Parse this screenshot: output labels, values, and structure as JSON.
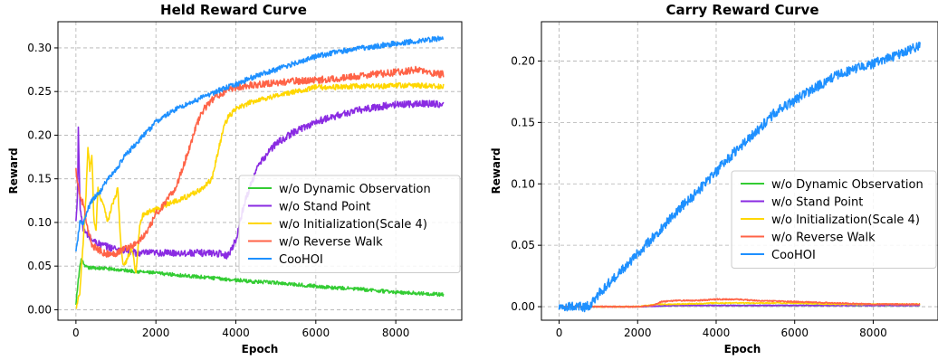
{
  "chart_data": [
    {
      "type": "line",
      "title": "Held Reward Curve",
      "xlabel": "Epoch",
      "ylabel": "Reward",
      "xlim": [
        -450,
        9650
      ],
      "ylim": [
        -0.012,
        0.33
      ],
      "xticks": [
        0,
        2000,
        4000,
        6000,
        8000
      ],
      "yticks": [
        0.0,
        0.05,
        0.1,
        0.15,
        0.2,
        0.25,
        0.3
      ],
      "ytick_labels": [
        "0.00",
        "0.05",
        "0.10",
        "0.15",
        "0.20",
        "0.25",
        "0.30"
      ],
      "grid": true,
      "legend": "center-right",
      "series": [
        {
          "name": "w/o Dynamic Observation",
          "color": "#33cc33",
          "x": [
            0,
            50,
            100,
            150,
            200,
            300,
            500,
            800,
            1000,
            1500,
            2000,
            2500,
            3000,
            3500,
            4000,
            4500,
            5000,
            5500,
            6000,
            6500,
            7000,
            7500,
            8000,
            8500,
            9000,
            9200
          ],
          "y": [
            0.005,
            0.03,
            0.05,
            0.06,
            0.05,
            0.048,
            0.048,
            0.047,
            0.046,
            0.044,
            0.042,
            0.04,
            0.038,
            0.036,
            0.034,
            0.032,
            0.031,
            0.029,
            0.027,
            0.025,
            0.024,
            0.022,
            0.02,
            0.019,
            0.018,
            0.017
          ],
          "noise": 0.002
        },
        {
          "name": "w/o Stand Point",
          "color": "#8a2be2",
          "x": [
            0,
            40,
            60,
            100,
            150,
            200,
            300,
            400,
            600,
            800,
            1000,
            1200,
            1500,
            2000,
            2500,
            3000,
            3500,
            3800,
            4000,
            4200,
            4500,
            4800,
            5000,
            5500,
            6000,
            6500,
            7000,
            7500,
            8000,
            8500,
            9000,
            9200
          ],
          "y": [
            0.1,
            0.13,
            0.21,
            0.12,
            0.1,
            0.09,
            0.085,
            0.08,
            0.075,
            0.072,
            0.07,
            0.068,
            0.065,
            0.065,
            0.065,
            0.065,
            0.065,
            0.062,
            0.08,
            0.12,
            0.16,
            0.18,
            0.19,
            0.205,
            0.215,
            0.222,
            0.228,
            0.232,
            0.235,
            0.236,
            0.236,
            0.235
          ],
          "noise": 0.004
        },
        {
          "name": "w/o Initialization(Scale 4)",
          "color": "#ffd700",
          "x": [
            0,
            100,
            200,
            250,
            300,
            350,
            400,
            450,
            500,
            550,
            600,
            700,
            800,
            900,
            1000,
            1050,
            1100,
            1150,
            1200,
            1300,
            1400,
            1500,
            1600,
            1700,
            2000,
            2500,
            2800,
            3000,
            3200,
            3400,
            3500,
            3600,
            3700,
            3800,
            4000,
            4500,
            5000,
            5500,
            6000,
            6500,
            7000,
            7500,
            8000,
            8500,
            9000,
            9200
          ],
          "y": [
            0.0,
            0.02,
            0.09,
            0.13,
            0.185,
            0.16,
            0.18,
            0.1,
            0.09,
            0.14,
            0.13,
            0.12,
            0.1,
            0.12,
            0.13,
            0.14,
            0.09,
            0.06,
            0.05,
            0.06,
            0.07,
            0.04,
            0.1,
            0.11,
            0.115,
            0.125,
            0.13,
            0.135,
            0.14,
            0.15,
            0.17,
            0.19,
            0.21,
            0.22,
            0.23,
            0.24,
            0.245,
            0.25,
            0.255,
            0.255,
            0.256,
            0.256,
            0.257,
            0.257,
            0.256,
            0.256
          ],
          "noise": 0.003
        },
        {
          "name": "w/o Reverse Walk",
          "color": "#ff6347",
          "x": [
            0,
            100,
            200,
            250,
            300,
            400,
            500,
            700,
            900,
            1000,
            1200,
            1500,
            1800,
            2000,
            2200,
            2500,
            2800,
            3000,
            3200,
            3500,
            4000,
            4500,
            5000,
            5500,
            6000,
            6500,
            7000,
            7500,
            8000,
            8500,
            9000,
            9200
          ],
          "y": [
            0.16,
            0.13,
            0.12,
            0.1,
            0.09,
            0.075,
            0.07,
            0.065,
            0.063,
            0.065,
            0.07,
            0.075,
            0.09,
            0.11,
            0.12,
            0.14,
            0.18,
            0.21,
            0.23,
            0.245,
            0.255,
            0.258,
            0.26,
            0.262,
            0.263,
            0.265,
            0.267,
            0.27,
            0.272,
            0.275,
            0.27,
            0.27
          ],
          "noise": 0.004
        },
        {
          "name": "CooHOI",
          "color": "#1e90ff",
          "x": [
            0,
            100,
            200,
            300,
            400,
            500,
            600,
            800,
            1000,
            1200,
            1500,
            1800,
            2000,
            2500,
            3000,
            3500,
            4000,
            4500,
            5000,
            5500,
            6000,
            6500,
            7000,
            7500,
            8000,
            8500,
            9000,
            9200
          ],
          "y": [
            0.065,
            0.1,
            0.1,
            0.115,
            0.125,
            0.13,
            0.135,
            0.15,
            0.16,
            0.175,
            0.19,
            0.205,
            0.215,
            0.23,
            0.24,
            0.25,
            0.258,
            0.268,
            0.275,
            0.283,
            0.29,
            0.295,
            0.299,
            0.302,
            0.305,
            0.308,
            0.31,
            0.312
          ],
          "noise": 0.003
        }
      ]
    },
    {
      "type": "line",
      "title": "Carry Reward Curve",
      "xlabel": "Epoch",
      "ylabel": "Reward",
      "xlim": [
        -450,
        9650
      ],
      "ylim": [
        -0.011,
        0.232
      ],
      "xticks": [
        0,
        2000,
        4000,
        6000,
        8000
      ],
      "yticks": [
        0.0,
        0.05,
        0.1,
        0.15,
        0.2
      ],
      "ytick_labels": [
        "0.00",
        "0.05",
        "0.10",
        "0.15",
        "0.20"
      ],
      "grid": true,
      "legend": "center-right",
      "series": [
        {
          "name": "w/o Dynamic Observation",
          "color": "#33cc33",
          "x": [
            0,
            800,
            2000,
            3000,
            4000,
            5000,
            6000,
            7000,
            8000,
            9000,
            9200
          ],
          "y": [
            0.0,
            0.0,
            0.0,
            0.001,
            0.001,
            0.001,
            0.001,
            0.001,
            0.001,
            0.001,
            0.001
          ],
          "noise": 0.0003
        },
        {
          "name": "w/o Stand Point",
          "color": "#8a2be2",
          "x": [
            0,
            800,
            2000,
            3000,
            4000,
            5000,
            6000,
            7000,
            8000,
            9000,
            9200
          ],
          "y": [
            0.0,
            0.0,
            0.0,
            0.001,
            0.001,
            0.001,
            0.001,
            0.001,
            0.001,
            0.001,
            0.001
          ],
          "noise": 0.0003
        },
        {
          "name": "w/o Initialization(Scale 4)",
          "color": "#ffd700",
          "x": [
            0,
            800,
            2000,
            2500,
            3000,
            4000,
            5000,
            6000,
            7000,
            8000,
            9000,
            9200
          ],
          "y": [
            0.0,
            0.0,
            0.0,
            0.002,
            0.002,
            0.003,
            0.003,
            0.003,
            0.002,
            0.002,
            0.002,
            0.002
          ],
          "noise": 0.0004
        },
        {
          "name": "w/o Reverse Walk",
          "color": "#ff6347",
          "x": [
            0,
            800,
            2000,
            2400,
            2600,
            3000,
            3500,
            4000,
            4500,
            5000,
            6000,
            7000,
            8000,
            9000,
            9200
          ],
          "y": [
            0.0,
            0.0,
            0.0,
            0.001,
            0.004,
            0.005,
            0.005,
            0.006,
            0.006,
            0.005,
            0.004,
            0.003,
            0.002,
            0.002,
            0.002
          ],
          "noise": 0.0005
        },
        {
          "name": "CooHOI",
          "color": "#1e90ff",
          "x": [
            0,
            500,
            700,
            800,
            900,
            1000,
            1200,
            1500,
            2000,
            2500,
            3000,
            3500,
            4000,
            4500,
            5000,
            5500,
            6000,
            6500,
            7000,
            7500,
            8000,
            8500,
            9000,
            9200
          ],
          "y": [
            0.0,
            0.0,
            0.0,
            0.002,
            0.006,
            0.01,
            0.017,
            0.027,
            0.043,
            0.06,
            0.078,
            0.093,
            0.11,
            0.127,
            0.142,
            0.158,
            0.168,
            0.178,
            0.187,
            0.193,
            0.198,
            0.203,
            0.21,
            0.212
          ],
          "noise": 0.004
        }
      ]
    }
  ]
}
